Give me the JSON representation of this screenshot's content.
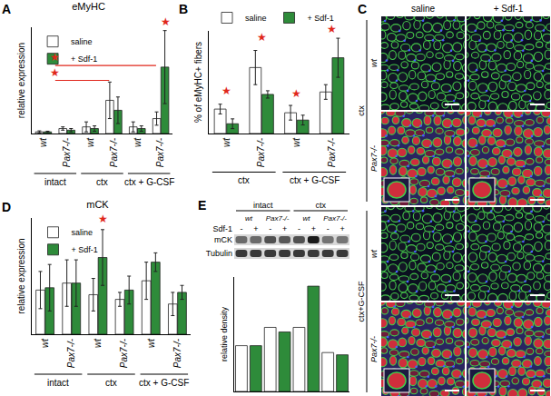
{
  "chart_data": [
    {
      "panel": "A",
      "type": "bar",
      "title": "eMyHC",
      "y_label": "relative expression",
      "categories": [
        "wt",
        "Pax7-/-",
        "wt",
        "Pax7-/-",
        "wt",
        "Pax7-/-"
      ],
      "groups": [
        {
          "label": "intact",
          "from": 0,
          "to": 1
        },
        {
          "label": "ctx",
          "from": 2,
          "to": 3
        },
        {
          "label": "ctx + G-CSF",
          "from": 4,
          "to": 5
        }
      ],
      "series": [
        {
          "name": "saline",
          "color": "#ffffff",
          "values": [
            0.05,
            0.15,
            0.2,
            1.0,
            0.2,
            0.45
          ],
          "errors": [
            0.03,
            0.05,
            0.15,
            0.55,
            0.15,
            0.2
          ]
        },
        {
          "name": "+ Sdf-1",
          "color": "#2e8b3a",
          "values": [
            0.05,
            0.1,
            0.15,
            0.7,
            0.15,
            2.0
          ],
          "errors": [
            0.02,
            0.05,
            0.08,
            0.4,
            0.08,
            1.1
          ]
        }
      ],
      "ylim": [
        0,
        3.2
      ],
      "yticks": [],
      "tick_labels": "x",
      "legend": "upper left",
      "annotations": [
        {
          "text": "★",
          "x": 5.2,
          "y": 3.12
        },
        {
          "text": "★",
          "x": 0.5,
          "y": 2.05,
          "span": [
            0.5,
            4.8
          ]
        },
        {
          "text": "★",
          "x": 0.5,
          "y": 1.6,
          "span": [
            0.5,
            2.8
          ]
        }
      ]
    },
    {
      "panel": "B",
      "type": "bar",
      "y_label": "% of eMyHC+ fibers",
      "categories": [
        "wt",
        "Pax7-/-",
        "wt",
        "Pax7-/-"
      ],
      "groups": [
        {
          "label": "ctx",
          "from": 0,
          "to": 1
        },
        {
          "label": "ctx + G-CSF",
          "from": 2,
          "to": 3
        }
      ],
      "series": [
        {
          "name": "saline",
          "color": "#ffffff",
          "values": [
            10,
            27,
            8.5,
            17
          ],
          "errors": [
            2,
            7,
            3,
            3
          ]
        },
        {
          "name": "+ Sdf-1",
          "color": "#2e8b3a",
          "values": [
            4,
            16,
            5.5,
            31
          ],
          "errors": [
            2,
            1.5,
            2,
            8
          ]
        }
      ],
      "ylim": [
        0,
        42
      ],
      "yticks": [],
      "tick_labels": "x",
      "legend": "top",
      "annotations": [
        {
          "text": "★",
          "x": 0,
          "y": 14
        },
        {
          "text": "★",
          "x": 1,
          "y": 36
        },
        {
          "text": "★",
          "x": 2,
          "y": 13
        },
        {
          "text": "★",
          "x": 3,
          "y": 39.5
        }
      ]
    },
    {
      "panel": "D",
      "type": "bar",
      "title": "mCK",
      "y_label": "relative expression",
      "categories": [
        "wt",
        "Pax7-/-",
        "wt",
        "Pax7-/-",
        "wt",
        "Pax7-/-"
      ],
      "groups": [
        {
          "label": "intact",
          "from": 0,
          "to": 1
        },
        {
          "label": "ctx",
          "from": 2,
          "to": 3
        },
        {
          "label": "ctx + G-CSF",
          "from": 4,
          "to": 5
        }
      ],
      "series": [
        {
          "name": "saline",
          "color": "#ffffff",
          "values": [
            19,
            22,
            17,
            15,
            23,
            13
          ],
          "errors": [
            8,
            10,
            7,
            3,
            8,
            5
          ]
        },
        {
          "name": "+ Sdf-1",
          "color": "#2e8b3a",
          "values": [
            20,
            22,
            33,
            19,
            31,
            18
          ],
          "errors": [
            10,
            10,
            12,
            6,
            4,
            3
          ]
        }
      ],
      "ylim": [
        0,
        50
      ],
      "yticks": [],
      "tick_labels": "x",
      "legend": "upper left",
      "annotations": [
        {
          "text": "★",
          "x": 2.2,
          "y": 46
        }
      ]
    },
    {
      "panel": "E",
      "type": "bar",
      "y_label": "relative density",
      "categories": [
        "-",
        "+",
        "-",
        "+",
        "-",
        "+",
        "-",
        "+"
      ],
      "values": [
        1.0,
        1.0,
        1.4,
        1.3,
        1.4,
        2.3,
        0.85,
        0.8
      ],
      "colors": [
        "#ffffff",
        "#2e8b3a",
        "#ffffff",
        "#2e8b3a",
        "#ffffff",
        "#2e8b3a",
        "#ffffff",
        "#2e8b3a"
      ],
      "ylim": [
        0,
        2.5
      ],
      "yticks": [],
      "tick_labels": false
    }
  ],
  "figure": {
    "micrographs": {
      "panel": "C",
      "columns": [
        "saline",
        "+ Sdf-1"
      ],
      "groups": [
        {
          "label": "ctx",
          "rows": [
            "wt",
            "Pax7-/-"
          ]
        },
        {
          "label": "ctx+G-CSF",
          "rows": [
            "wt",
            "Pax7-/-"
          ]
        }
      ]
    },
    "blot": {
      "groups": [
        {
          "label": "intact",
          "genotypes": [
            "wt",
            "Pax7-/-"
          ]
        },
        {
          "label": "ctx",
          "genotypes": [
            "wt",
            "Pax7-/-"
          ]
        }
      ],
      "treatment_label": "Sdf-1",
      "treatment": [
        "-",
        "+",
        "-",
        "+",
        "-",
        "+",
        "-",
        "+"
      ],
      "bands": [
        "mCK",
        "Tubulin"
      ]
    }
  }
}
